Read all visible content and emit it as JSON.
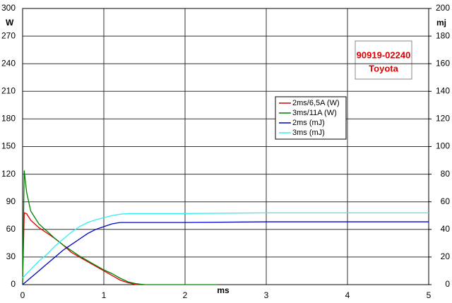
{
  "chart_data": {
    "type": "line",
    "x_label": "ms",
    "y_label": "W",
    "y2_label": "mj",
    "annotation": [
      "90919-02240",
      "Toyota"
    ],
    "x": [
      0,
      0.02,
      0.05,
      0.1,
      0.2,
      0.3,
      0.4,
      0.5,
      0.6,
      0.7,
      0.8,
      0.9,
      1.0,
      1.1,
      1.2,
      1.3,
      1.4,
      1.5,
      2,
      2.4,
      3,
      4,
      5
    ],
    "series": [
      {
        "name": "2ms/6,5A (W)",
        "color": "#e00000",
        "axis": "y",
        "values": [
          0,
          78,
          77,
          70,
          62,
          56,
          50,
          43,
          35,
          30,
          25,
          20,
          15,
          10,
          5,
          2,
          0,
          0,
          null,
          null,
          null,
          null,
          null
        ]
      },
      {
        "name": "3ms/11A (W)",
        "color": "#008000",
        "axis": "y",
        "values": [
          0,
          124,
          100,
          80,
          66,
          58,
          50,
          43,
          37,
          31,
          26,
          21,
          16,
          12,
          7,
          3,
          1,
          0,
          0,
          0,
          null,
          null,
          null
        ]
      },
      {
        "name": "2ms (mJ)",
        "color": "#0000cc",
        "axis": "y2",
        "values": [
          0,
          1,
          2.5,
          5,
          10,
          15,
          20,
          25,
          29,
          33,
          37,
          40,
          42,
          44,
          45,
          45,
          45,
          45,
          45,
          45.2,
          45.5,
          45.5,
          45.5
        ]
      },
      {
        "name": "3ms (mJ)",
        "color": "#33f0f0",
        "axis": "y2",
        "values": [
          5,
          6,
          8,
          11,
          17,
          22,
          28,
          33,
          38,
          42,
          45,
          47,
          48.5,
          50,
          51,
          51.5,
          51.5,
          51.5,
          51.5,
          51.7,
          52,
          52,
          52
        ]
      }
    ],
    "xlim": [
      0,
      5
    ],
    "xticks": [
      0,
      1,
      2,
      3,
      4,
      5
    ],
    "ylim": [
      0,
      300
    ],
    "yticks": [
      0,
      30,
      60,
      90,
      120,
      150,
      180,
      210,
      240,
      270,
      300
    ],
    "y2lim": [
      0,
      200
    ],
    "y2ticks": [
      0,
      20,
      40,
      60,
      80,
      100,
      120,
      140,
      160,
      180,
      200
    ],
    "grid": true
  }
}
